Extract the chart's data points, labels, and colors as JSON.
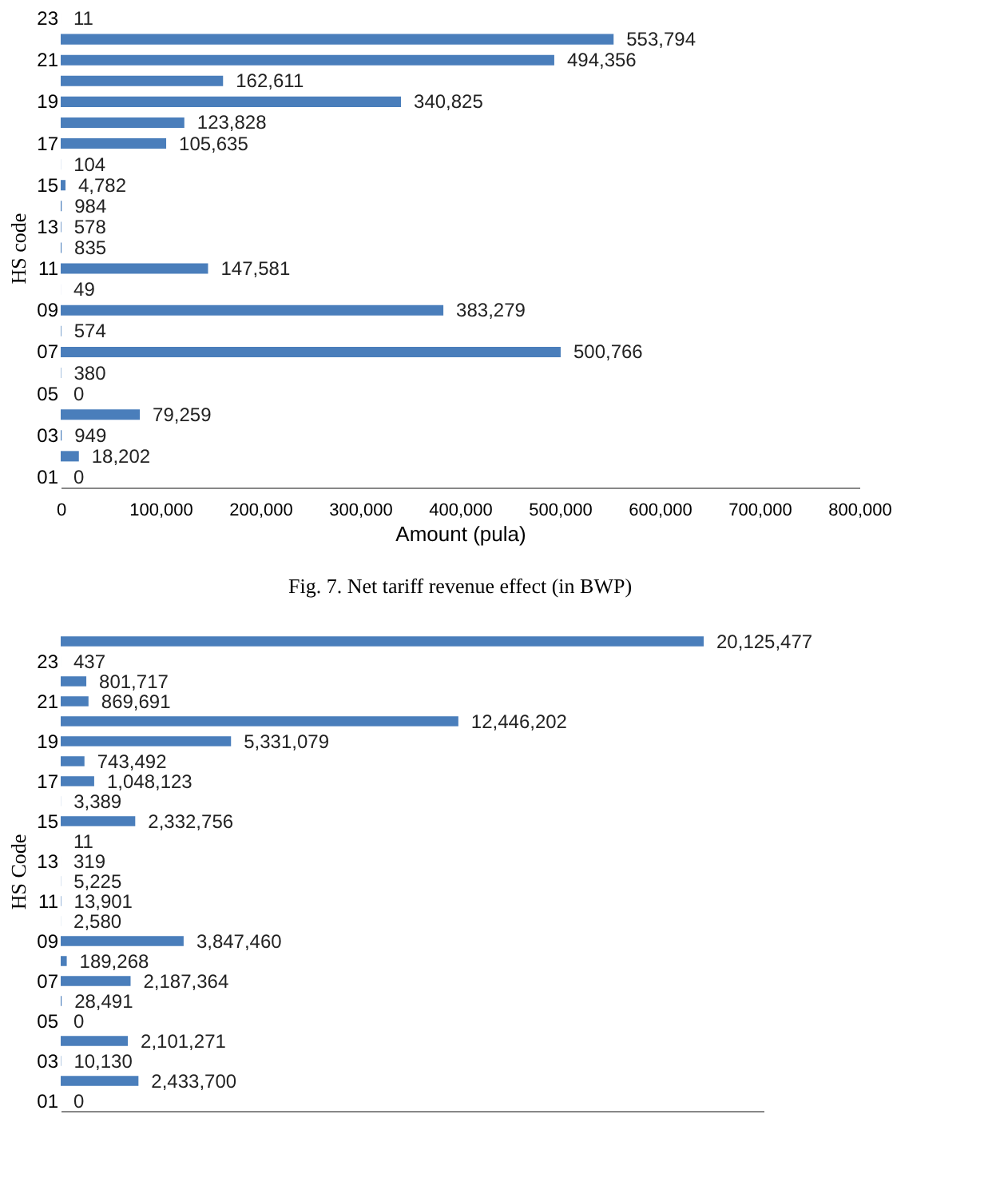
{
  "chart_data": [
    {
      "type": "bar",
      "orientation": "horizontal",
      "xlabel": "Amount (pula)",
      "ylabel": "HS code",
      "grid": false,
      "categories": [
        "23",
        null,
        "21",
        null,
        "19",
        null,
        "17",
        null,
        "15",
        null,
        "13",
        null,
        "11",
        null,
        "09",
        null,
        "07",
        null,
        "05",
        null,
        "03",
        null,
        "01"
      ],
      "values": [
        11,
        553794,
        494356,
        162611,
        340825,
        123828,
        105635,
        104,
        4782,
        984,
        578,
        835,
        147581,
        49,
        383279,
        574,
        500766,
        380,
        0,
        79259,
        949,
        18202,
        0
      ],
      "value_labels": [
        "11",
        "553,794",
        "494,356",
        "162,611",
        "340,825",
        "123,828",
        "105,635",
        "104",
        "4,782",
        "984",
        "578",
        "835",
        "147,581",
        "49",
        "383,279",
        "574",
        "500,766",
        "380",
        "0",
        "79,259",
        "949",
        "18,202",
        "0"
      ],
      "color": "#4a7ebb",
      "xlim": [
        0,
        800000
      ],
      "xticks": [
        0,
        {
          "value": 100000,
          "label": "100,000"
        },
        {
          "value": 200000,
          "label": "200,000"
        },
        {
          "value": 300000,
          "label": "300,000"
        },
        {
          "value": 400000,
          "label": "400,000"
        },
        {
          "value": 500000,
          "label": "500,000"
        },
        {
          "value": 600000,
          "label": "600,000"
        },
        {
          "value": 700000,
          "label": "700,000"
        },
        {
          "value": 800000,
          "label": "800,000"
        }
      ],
      "annotations": [
        "Fig. 7. Net tariff revenue effect (in BWP)"
      ]
    },
    {
      "type": "bar",
      "orientation": "horizontal",
      "ylabel": "HS Code",
      "grid": false,
      "tick_labels": "y",
      "categories": [
        null,
        "23",
        null,
        "21",
        null,
        "19",
        null,
        "17",
        null,
        "15",
        null,
        "13",
        null,
        "11",
        null,
        "09",
        null,
        "07",
        null,
        "05",
        null,
        "03",
        null,
        "01"
      ],
      "values": [
        20125477,
        437,
        801717,
        869691,
        12446202,
        5331079,
        743492,
        1048123,
        3389,
        2332756,
        11,
        319,
        5225,
        13901,
        2580,
        3847460,
        189268,
        2187364,
        28491,
        0,
        2101271,
        10130,
        2433700,
        0
      ],
      "value_labels": [
        "20,125,477",
        "437",
        "801,717",
        "869,691",
        "12,446,202",
        "5,331,079",
        "743,492",
        "1,048,123",
        "3,389",
        "2,332,756",
        "11",
        "319",
        "5,225",
        "13,901",
        "2,580",
        "3,847,460",
        "189,268",
        "2,187,364",
        "28,491",
        "0",
        "2,101,271",
        "10,130",
        "2,433,700",
        "0"
      ],
      "color": "#4a7ebb"
    }
  ]
}
